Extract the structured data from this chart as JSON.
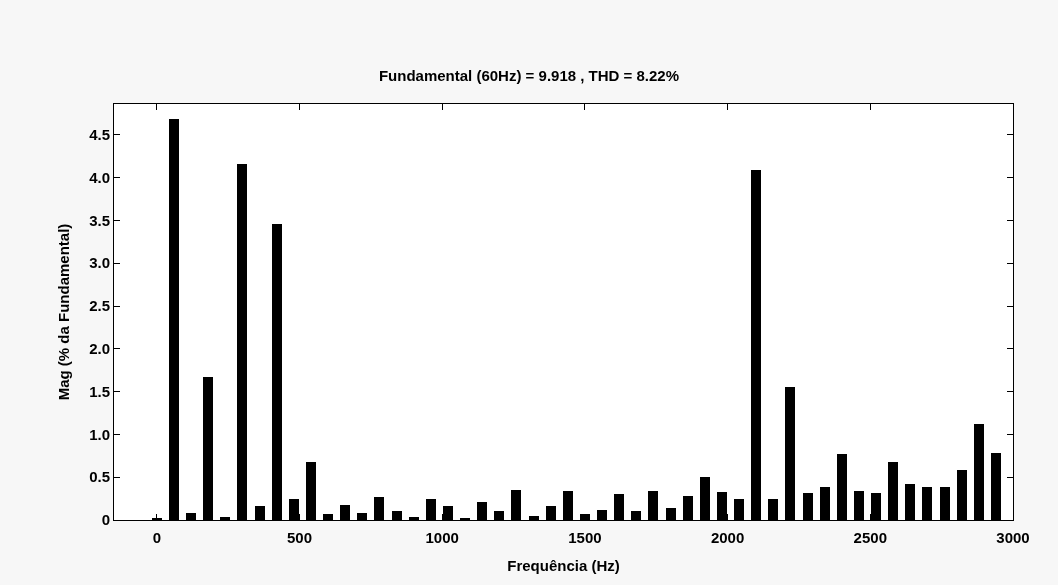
{
  "chart_data": {
    "type": "bar",
    "title": "Fundamental (60Hz) = 9.918 , THD = 8.22%",
    "xlabel": "Frequência (Hz)",
    "ylabel": "Mag (% da Fundamental)",
    "x": [
      0,
      60,
      120,
      180,
      240,
      300,
      360,
      420,
      480,
      540,
      600,
      660,
      720,
      780,
      840,
      900,
      960,
      1020,
      1080,
      1140,
      1200,
      1260,
      1320,
      1380,
      1440,
      1500,
      1560,
      1620,
      1680,
      1740,
      1800,
      1860,
      1920,
      1980,
      2040,
      2100,
      2160,
      2220,
      2280,
      2340,
      2400,
      2460,
      2520,
      2580,
      2640,
      2700,
      2760,
      2820,
      2880,
      2940
    ],
    "values": [
      0.02,
      4.68,
      0.08,
      1.67,
      0.04,
      4.16,
      0.16,
      3.46,
      0.24,
      0.68,
      0.07,
      0.17,
      0.08,
      0.27,
      0.1,
      0.03,
      0.25,
      0.16,
      0.02,
      0.21,
      0.11,
      0.35,
      0.05,
      0.16,
      0.34,
      0.07,
      0.12,
      0.3,
      0.11,
      0.34,
      0.14,
      0.28,
      0.5,
      0.33,
      0.24,
      4.09,
      0.24,
      1.55,
      0.32,
      0.39,
      0.77,
      0.34,
      0.32,
      0.68,
      0.42,
      0.38,
      0.39,
      0.59,
      1.12,
      0.78
    ],
    "color": "#000000",
    "xlim": [
      -150,
      3000
    ],
    "xticks": [
      0,
      500,
      1000,
      1500,
      2000,
      2500,
      3000
    ],
    "ylim": [
      0,
      4.86
    ],
    "yticks": [
      0,
      0.5,
      {
        "value": 1,
        "label": "1.0"
      },
      1.5,
      {
        "value": 2,
        "label": "2.0"
      },
      2.5,
      {
        "value": 3,
        "label": "3.0"
      },
      3.5,
      {
        "value": 4,
        "label": "4.0"
      },
      4.5
    ],
    "relative": false
  }
}
